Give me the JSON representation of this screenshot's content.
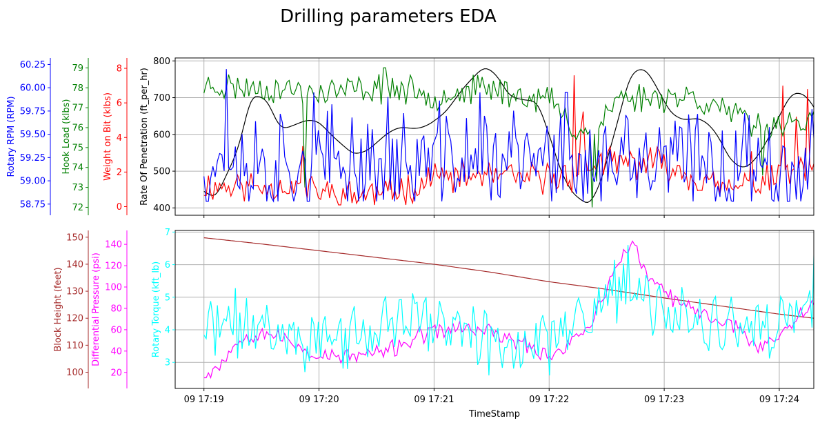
{
  "chart_data": {
    "title": "Drilling parameters EDA",
    "xlabel": "TimeStamp",
    "x_ticks": [
      "09 17:19",
      "09 17:20",
      "09 17:21",
      "09 17:22",
      "09 17:23",
      "09 17:24"
    ],
    "x_range_minutes": [
      -0.25,
      5.3
    ],
    "panels": [
      {
        "name": "upper",
        "type": "line",
        "grid": true,
        "axes": [
          {
            "label": "Rate Of Penetration (ft_per_hr)",
            "color": "#000000",
            "ylim": [
              380,
              808
            ],
            "ticks": [
              400,
              500,
              600,
              700,
              800
            ],
            "side": "inner-left"
          },
          {
            "label": "Weight on Bit (klbs)",
            "color": "#ff0000",
            "ylim": [
              -0.5,
              8.6
            ],
            "ticks": [
              0,
              2,
              4,
              6,
              8
            ],
            "side": "left"
          },
          {
            "label": "Hook Load (klbs)",
            "color": "#008000",
            "ylim": [
              71.6,
              79.5
            ],
            "ticks": [
              72,
              73,
              74,
              75,
              76,
              77,
              78,
              79
            ],
            "side": "left"
          },
          {
            "label": "Rotary RPM (RPM)",
            "color": "#0000ff",
            "ylim": [
              58.63,
              60.32
            ],
            "ticks": [
              58.75,
              59.0,
              59.25,
              59.5,
              59.75,
              60.0,
              60.25
            ],
            "side": "left"
          }
        ],
        "series": [
          {
            "axis": 0,
            "color": "#000000",
            "kind": "smooth",
            "points": [
              [
                0,
                445
              ],
              [
                0.1,
                425
              ],
              [
                0.3,
                560
              ],
              [
                0.4,
                695
              ],
              [
                0.42,
                710
              ],
              [
                0.55,
                695
              ],
              [
                0.65,
                620
              ],
              [
                0.7,
                615
              ],
              [
                0.82,
                630
              ],
              [
                0.9,
                640
              ],
              [
                1.0,
                635
              ],
              [
                1.1,
                600
              ],
              [
                1.3,
                545
              ],
              [
                1.42,
                555
              ],
              [
                1.6,
                605
              ],
              [
                1.7,
                620
              ],
              [
                1.85,
                615
              ],
              [
                1.95,
                625
              ],
              [
                2.1,
                660
              ],
              [
                2.25,
                725
              ],
              [
                2.4,
                775
              ],
              [
                2.45,
                785
              ],
              [
                2.55,
                760
              ],
              [
                2.65,
                705
              ],
              [
                2.75,
                695
              ],
              [
                2.9,
                690
              ],
              [
                3.0,
                600
              ],
              [
                3.1,
                500
              ],
              [
                3.2,
                440
              ],
              [
                3.35,
                405
              ],
              [
                3.45,
                470
              ],
              [
                3.6,
                640
              ],
              [
                3.7,
                760
              ],
              [
                3.78,
                780
              ],
              [
                3.85,
                775
              ],
              [
                3.95,
                720
              ],
              [
                4.05,
                660
              ],
              [
                4.15,
                640
              ],
              [
                4.2,
                640
              ],
              [
                4.3,
                645
              ],
              [
                4.4,
                625
              ],
              [
                4.5,
                580
              ],
              [
                4.55,
                540
              ],
              [
                4.65,
                510
              ],
              [
                4.72,
                510
              ],
              [
                4.8,
                535
              ],
              [
                4.9,
                585
              ],
              [
                5.0,
                650
              ],
              [
                5.1,
                710
              ],
              [
                5.18,
                715
              ],
              [
                5.25,
                700
              ],
              [
                5.35,
                650
              ],
              [
                5.45,
                565
              ],
              [
                5.5,
                515
              ],
              [
                5.58,
                500
              ],
              [
                5.65,
                510
              ],
              [
                5.7,
                520
              ],
              [
                5.75,
                540
              ],
              [
                5.85,
                560
              ]
            ]
          },
          {
            "axis": 1,
            "color": "#ff0000",
            "kind": "noisy",
            "min": 0.1,
            "max": 7.8,
            "seed": 11,
            "base": [
              [
                0,
                1.2
              ],
              [
                0.8,
                1.2
              ],
              [
                1.2,
                0.6
              ],
              [
                1.6,
                0.8
              ],
              [
                2.0,
                1.5
              ],
              [
                2.4,
                1.8
              ],
              [
                2.8,
                1.6
              ],
              [
                3.2,
                1.8
              ],
              [
                3.4,
                2.5
              ],
              [
                3.6,
                2.5
              ],
              [
                4.0,
                2.5
              ],
              [
                4.5,
                1.0
              ],
              [
                4.8,
                1.2
              ],
              [
                5.0,
                1.8
              ],
              [
                5.3,
                2.3
              ],
              [
                5.5,
                2.5
              ],
              [
                5.85,
                2.6
              ]
            ],
            "amp": 0.7,
            "spikes": [
              [
                0.85,
                3.5
              ],
              [
                2.0,
                2.5
              ],
              [
                3.22,
                7.6
              ],
              [
                3.3,
                5.5
              ],
              [
                3.27,
                4.5
              ],
              [
                4.75,
                3.2
              ],
              [
                5.03,
                7.0
              ],
              [
                5.15,
                5.2
              ],
              [
                5.25,
                6.8
              ],
              [
                5.5,
                3.8
              ],
              [
                5.85,
                3.2
              ]
            ]
          },
          {
            "axis": 2,
            "color": "#008000",
            "kind": "noisy",
            "min": 71.8,
            "max": 79.2,
            "seed": 23,
            "base": [
              [
                0,
                78.1
              ],
              [
                0.5,
                78.0
              ],
              [
                1.0,
                77.8
              ],
              [
                1.6,
                78.0
              ],
              [
                2.0,
                77.6
              ],
              [
                2.5,
                78.0
              ],
              [
                2.8,
                77.5
              ],
              [
                3.0,
                77.5
              ],
              [
                3.2,
                76.0
              ],
              [
                3.4,
                75.8
              ],
              [
                3.6,
                77.5
              ],
              [
                4.2,
                77.6
              ],
              [
                4.5,
                77.0
              ],
              [
                4.8,
                76.0
              ],
              [
                5.0,
                76.3
              ],
              [
                5.3,
                76.3
              ],
              [
                5.5,
                75.0
              ],
              [
                5.85,
                74.8
              ]
            ],
            "amp": 0.55,
            "spikes": [
              [
                0.88,
                73.0
              ],
              [
                1.57,
                79.0
              ],
              [
                3.38,
                72.0
              ],
              [
                3.42,
                73.3
              ],
              [
                4.85,
                73.6
              ],
              [
                5.44,
                72.6
              ],
              [
                5.5,
                73.4
              ]
            ]
          },
          {
            "axis": 3,
            "color": "#0000ff",
            "kind": "noisy",
            "min": 58.78,
            "max": 60.28,
            "seed": 37,
            "base": [
              [
                0,
                59.2
              ],
              [
                1.0,
                59.15
              ],
              [
                2.0,
                59.2
              ],
              [
                2.5,
                59.25
              ],
              [
                3.0,
                59.2
              ],
              [
                3.5,
                59.1
              ],
              [
                4.0,
                59.2
              ],
              [
                4.5,
                59.2
              ],
              [
                5.0,
                59.2
              ],
              [
                5.5,
                59.15
              ],
              [
                5.85,
                59.2
              ]
            ],
            "amp": 0.45,
            "spikes": [
              [
                0.2,
                60.2
              ],
              [
                0.95,
                59.95
              ],
              [
                1.6,
                59.9
              ],
              [
                2.4,
                59.95
              ],
              [
                3.15,
                59.95
              ],
              [
                4.55,
                58.75
              ],
              [
                5.6,
                59.85
              ],
              [
                5.65,
                58.85
              ]
            ]
          }
        ]
      },
      {
        "name": "lower",
        "type": "line",
        "grid": true,
        "axes": [
          {
            "label": "Rotary Torque (kft_lb)",
            "color": "#00ffff",
            "ylim": [
              2.2,
              7.05
            ],
            "ticks": [
              3,
              4,
              5,
              6,
              7
            ],
            "side": "inner-left"
          },
          {
            "label": "Differential Pressure (psi)",
            "color": "#ff00ff",
            "ylim": [
              5,
              153
            ],
            "ticks": [
              20,
              40,
              60,
              80,
              100,
              120,
              140
            ],
            "side": "left"
          },
          {
            "label": "Block Height (feet)",
            "color": "#a52a2a",
            "ylim": [
              94,
              152.5
            ],
            "ticks": [
              100,
              110,
              120,
              130,
              140,
              150
            ],
            "side": "left"
          }
        ],
        "series": [
          {
            "axis": 2,
            "color": "#a52a2a",
            "kind": "smooth",
            "points": [
              [
                0,
                149.8
              ],
              [
                0.5,
                147.5
              ],
              [
                1.0,
                145.0
              ],
              [
                1.5,
                142.5
              ],
              [
                2.0,
                140.0
              ],
              [
                2.5,
                137.0
              ],
              [
                3.0,
                133.5
              ],
              [
                3.45,
                131.0
              ],
              [
                4.0,
                127.5
              ],
              [
                4.5,
                124.5
              ],
              [
                5.0,
                121.5
              ],
              [
                5.5,
                119.0
              ],
              [
                5.85,
                118.0
              ]
            ]
          },
          {
            "axis": 1,
            "color": "#ff00ff",
            "kind": "noisy",
            "min": 15,
            "max": 147,
            "seed": 53,
            "base": [
              [
                0,
                15
              ],
              [
                0.15,
                30
              ],
              [
                0.35,
                55
              ],
              [
                0.55,
                58
              ],
              [
                0.8,
                45
              ],
              [
                1.0,
                35
              ],
              [
                1.3,
                35
              ],
              [
                1.6,
                40
              ],
              [
                1.9,
                55
              ],
              [
                2.2,
                62
              ],
              [
                2.5,
                58
              ],
              [
                2.8,
                45
              ],
              [
                3.0,
                35
              ],
              [
                3.2,
                50
              ],
              [
                3.35,
                65
              ],
              [
                3.5,
                95
              ],
              [
                3.62,
                128
              ],
              [
                3.72,
                143
              ],
              [
                3.8,
                120
              ],
              [
                3.9,
                105
              ],
              [
                4.05,
                90
              ],
              [
                4.3,
                75
              ],
              [
                4.6,
                65
              ],
              [
                4.8,
                45
              ],
              [
                4.95,
                50
              ],
              [
                5.1,
                65
              ],
              [
                5.25,
                85
              ],
              [
                5.4,
                90
              ],
              [
                5.5,
                60
              ],
              [
                5.6,
                38
              ],
              [
                5.7,
                45
              ],
              [
                5.8,
                55
              ],
              [
                5.85,
                45
              ]
            ],
            "amp": 6
          },
          {
            "axis": 0,
            "color": "#00ffff",
            "kind": "noisy",
            "min": 2.5,
            "max": 6.85,
            "seed": 71,
            "base": [
              [
                0,
                4.0
              ],
              [
                0.3,
                4.2
              ],
              [
                0.6,
                4.0
              ],
              [
                1.0,
                3.7
              ],
              [
                1.4,
                3.8
              ],
              [
                1.8,
                4.4
              ],
              [
                2.0,
                4.2
              ],
              [
                2.4,
                3.9
              ],
              [
                2.8,
                3.5
              ],
              [
                3.0,
                3.7
              ],
              [
                3.2,
                4.2
              ],
              [
                3.4,
                4.6
              ],
              [
                3.55,
                5.2
              ],
              [
                3.75,
                5.0
              ],
              [
                3.9,
                4.7
              ],
              [
                4.2,
                4.4
              ],
              [
                4.5,
                4.0
              ],
              [
                4.8,
                3.8
              ],
              [
                5.1,
                4.3
              ],
              [
                5.3,
                4.6
              ],
              [
                5.5,
                3.9
              ],
              [
                5.7,
                4.1
              ],
              [
                5.85,
                4.1
              ]
            ],
            "amp": 0.75,
            "spikes": [
              [
                3.68,
                6.6
              ],
              [
                5.3,
                6.8
              ],
              [
                2.48,
                2.6
              ],
              [
                3.0,
                2.6
              ]
            ]
          }
        ]
      }
    ]
  }
}
